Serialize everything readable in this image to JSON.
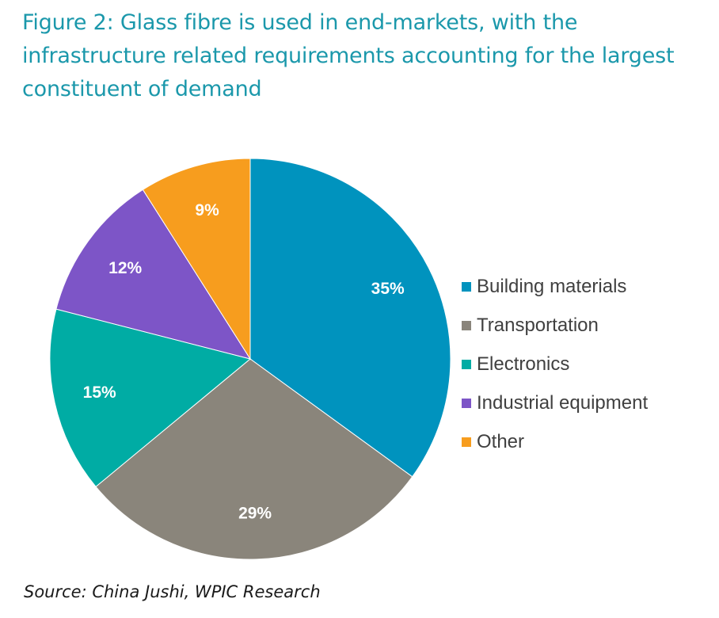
{
  "title": "Figure 2: Glass fibre is used in end-markets, with the infrastructure related requirements accounting for the largest constituent of demand",
  "source": "Source: China Jushi, WPIC Research",
  "chart_data": {
    "type": "pie",
    "categories": [
      "Building materials",
      "Transportation",
      "Electronics",
      "Industrial equipment",
      "Other"
    ],
    "values": [
      35,
      29,
      15,
      12,
      9
    ],
    "labels": [
      "35%",
      "29%",
      "15%",
      "12%",
      "9%"
    ],
    "colors": [
      "#0093be",
      "#8a857b",
      "#00aca4",
      "#7d55c7",
      "#f79d1e"
    ],
    "start_angle": "12 o'clock",
    "direction": "clockwise",
    "legend_position": "right"
  }
}
